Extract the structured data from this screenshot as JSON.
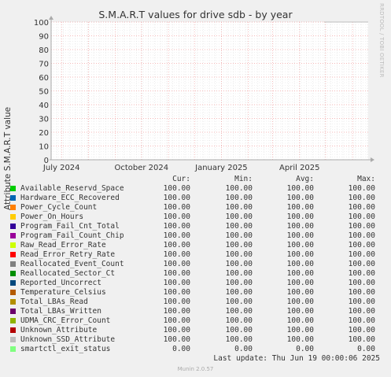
{
  "title": "S.M.A.R.T values for drive sdb - by year",
  "side_text": "RRDTOOL / TOBI OETIKER",
  "chart_data": {
    "type": "line",
    "title": "S.M.A.R.T values for drive sdb - by year",
    "ylabel": "Attribute S.M.A.R.T value",
    "xlabel": "",
    "ylim": [
      0,
      100
    ],
    "y_ticks": [
      "0",
      "10",
      "20",
      "30",
      "40",
      "50",
      "60",
      "70",
      "80",
      "90",
      "100"
    ],
    "x_ticks": [
      "July 2024",
      "October 2024",
      "January 2025",
      "April 2025"
    ],
    "x_range": [
      "2024-06-19",
      "2025-06-19"
    ],
    "grid": true,
    "series": [
      {
        "name": "Available_Reservd_Space",
        "color": "#00cc00",
        "data_start": "2025-04-30",
        "values": [
          100,
          100
        ]
      },
      {
        "name": "Hardware_ECC_Recovered",
        "color": "#0066b3",
        "data_start": "2025-04-30",
        "values": [
          100,
          100
        ]
      },
      {
        "name": "Power_Cycle_Count",
        "color": "#ff8000",
        "data_start": "2025-04-30",
        "values": [
          100,
          100
        ]
      },
      {
        "name": "Power_On_Hours",
        "color": "#ffcc00",
        "data_start": "2025-04-30",
        "values": [
          100,
          100
        ]
      },
      {
        "name": "Program_Fail_Cnt_Total",
        "color": "#330099",
        "data_start": "2025-04-30",
        "values": [
          100,
          100
        ]
      },
      {
        "name": "Program_Fail_Count_Chip",
        "color": "#990099",
        "data_start": "2025-04-30",
        "values": [
          100,
          100
        ]
      },
      {
        "name": "Raw_Read_Error_Rate",
        "color": "#ccff00",
        "data_start": "2025-04-30",
        "values": [
          100,
          100
        ]
      },
      {
        "name": "Read_Error_Retry_Rate",
        "color": "#ff0000",
        "data_start": "2025-04-30",
        "values": [
          100,
          100
        ]
      },
      {
        "name": "Reallocated_Event_Count",
        "color": "#808080",
        "data_start": "2025-04-30",
        "values": [
          100,
          100
        ]
      },
      {
        "name": "Reallocated_Sector_Ct",
        "color": "#008f00",
        "data_start": "2025-04-30",
        "values": [
          100,
          100
        ]
      },
      {
        "name": "Reported_Uncorrect",
        "color": "#00487d",
        "data_start": "2025-04-30",
        "values": [
          100,
          100
        ]
      },
      {
        "name": "Temperature_Celsius",
        "color": "#b35a00",
        "data_start": "2025-04-30",
        "values": [
          100,
          100
        ]
      },
      {
        "name": "Total_LBAs_Read",
        "color": "#b38f00",
        "data_start": "2025-04-30",
        "values": [
          100,
          100
        ]
      },
      {
        "name": "Total_LBAs_Written",
        "color": "#6b006b",
        "data_start": "2025-04-30",
        "values": [
          100,
          100
        ]
      },
      {
        "name": "UDMA_CRC_Error_Count",
        "color": "#8fb300",
        "data_start": "2025-04-30",
        "values": [
          100,
          100
        ]
      },
      {
        "name": "Unknown_Attribute",
        "color": "#b30000",
        "data_start": "2025-04-30",
        "values": [
          100,
          100
        ]
      },
      {
        "name": "Unknown_SSD_Attribute",
        "color": "#bebebe",
        "data_start": "2025-04-30",
        "values": [
          100,
          100
        ]
      },
      {
        "name": "smartctl_exit_status",
        "color": "#80ff80",
        "data_start": "2025-04-30",
        "values": [
          0,
          0
        ]
      }
    ]
  },
  "legend": {
    "headers": [
      "Cur:",
      "Min:",
      "Avg:",
      "Max:"
    ],
    "rows": [
      {
        "name": "Available_Reservd_Space",
        "cur": "100.00",
        "min": "100.00",
        "avg": "100.00",
        "max": "100.00"
      },
      {
        "name": "Hardware_ECC_Recovered",
        "cur": "100.00",
        "min": "100.00",
        "avg": "100.00",
        "max": "100.00"
      },
      {
        "name": "Power_Cycle_Count",
        "cur": "100.00",
        "min": "100.00",
        "avg": "100.00",
        "max": "100.00"
      },
      {
        "name": "Power_On_Hours",
        "cur": "100.00",
        "min": "100.00",
        "avg": "100.00",
        "max": "100.00"
      },
      {
        "name": "Program_Fail_Cnt_Total",
        "cur": "100.00",
        "min": "100.00",
        "avg": "100.00",
        "max": "100.00"
      },
      {
        "name": "Program_Fail_Count_Chip",
        "cur": "100.00",
        "min": "100.00",
        "avg": "100.00",
        "max": "100.00"
      },
      {
        "name": "Raw_Read_Error_Rate",
        "cur": "100.00",
        "min": "100.00",
        "avg": "100.00",
        "max": "100.00"
      },
      {
        "name": "Read_Error_Retry_Rate",
        "cur": "100.00",
        "min": "100.00",
        "avg": "100.00",
        "max": "100.00"
      },
      {
        "name": "Reallocated_Event_Count",
        "cur": "100.00",
        "min": "100.00",
        "avg": "100.00",
        "max": "100.00"
      },
      {
        "name": "Reallocated_Sector_Ct",
        "cur": "100.00",
        "min": "100.00",
        "avg": "100.00",
        "max": "100.00"
      },
      {
        "name": "Reported_Uncorrect",
        "cur": "100.00",
        "min": "100.00",
        "avg": "100.00",
        "max": "100.00"
      },
      {
        "name": "Temperature_Celsius",
        "cur": "100.00",
        "min": "100.00",
        "avg": "100.00",
        "max": "100.00"
      },
      {
        "name": "Total_LBAs_Read",
        "cur": "100.00",
        "min": "100.00",
        "avg": "100.00",
        "max": "100.00"
      },
      {
        "name": "Total_LBAs_Written",
        "cur": "100.00",
        "min": "100.00",
        "avg": "100.00",
        "max": "100.00"
      },
      {
        "name": "UDMA_CRC_Error_Count",
        "cur": "100.00",
        "min": "100.00",
        "avg": "100.00",
        "max": "100.00"
      },
      {
        "name": "Unknown_Attribute",
        "cur": "100.00",
        "min": "100.00",
        "avg": "100.00",
        "max": "100.00"
      },
      {
        "name": "Unknown_SSD_Attribute",
        "cur": "100.00",
        "min": "100.00",
        "avg": "100.00",
        "max": "100.00"
      },
      {
        "name": "smartctl_exit_status",
        "cur": "0.00",
        "min": "0.00",
        "avg": "0.00",
        "max": "0.00"
      }
    ]
  },
  "last_update": "Last update: Thu Jun 19 00:00:06 2025",
  "footer": "Munin 2.0.57",
  "colors": {
    "background": "#f0f0f0",
    "plot_background": "#ffffff",
    "grid_major": "#f0a0a0",
    "grid_minor": "#e0e0e0"
  }
}
